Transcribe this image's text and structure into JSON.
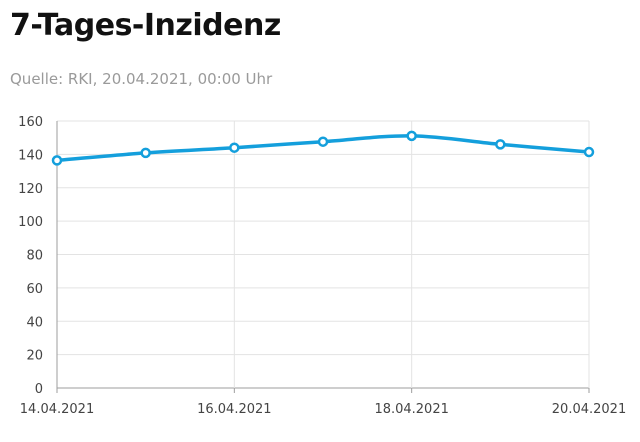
{
  "header": {
    "title": "7-Tages-Inzidenz",
    "source": "Quelle: RKI, 20.04.2021, 00:00 Uhr"
  },
  "chart_data": {
    "type": "line",
    "title": "7-Tages-Inzidenz",
    "subtitle": "Quelle: RKI, 20.04.2021, 00:00 Uhr",
    "xlabel": "",
    "ylabel": "",
    "x": [
      "14.04.2021",
      "15.04.2021",
      "16.04.2021",
      "17.04.2021",
      "18.04.2021",
      "19.04.2021",
      "20.04.2021"
    ],
    "x_tick_labels": [
      "14.04.2021",
      "16.04.2021",
      "18.04.2021",
      "20.04.2021"
    ],
    "series": [
      {
        "values": [
          136.4,
          140.9,
          144.0,
          147.6,
          151.1,
          146.0,
          141.4
        ],
        "color": "#149fdc"
      }
    ],
    "ylim": [
      0,
      160
    ],
    "y_ticks": [
      0,
      20,
      40,
      60,
      80,
      100,
      120,
      140,
      160
    ],
    "grid": true,
    "legend": "none"
  }
}
